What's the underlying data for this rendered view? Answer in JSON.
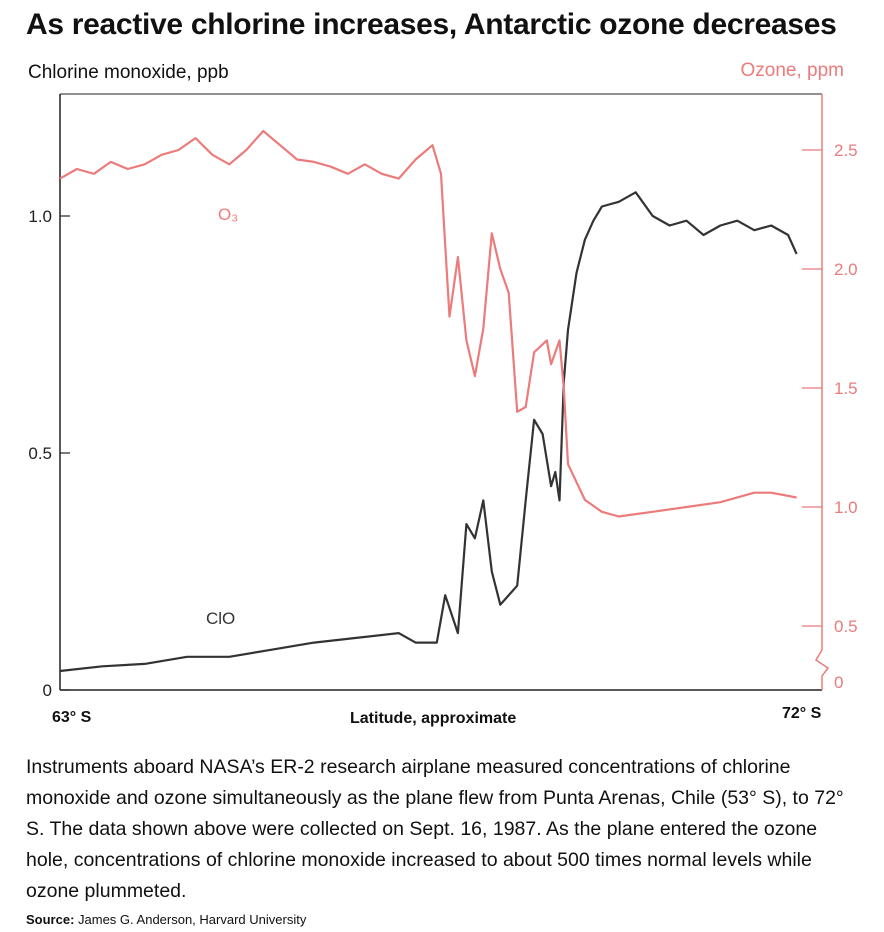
{
  "title": "As reactive chlorine increases, Antarctic ozone decreases",
  "chart_data": {
    "type": "line",
    "title": "As reactive chlorine increases, Antarctic ozone decreases",
    "xlabel": "Latitude, approximate",
    "x_tick_labels": [
      "63° S",
      "72° S"
    ],
    "xlim": [
      63,
      72
    ],
    "y_left": {
      "label": "Chlorine monoxide, ppb",
      "lim": [
        0,
        1.2
      ],
      "ticks": [
        0,
        0.5,
        1.0
      ],
      "tick_labels": [
        "0",
        "0.5",
        "1.0"
      ]
    },
    "y_right": {
      "label": "Ozone, ppm",
      "lim": [
        0,
        2.7
      ],
      "ticks": [
        0,
        0.5,
        1.0,
        1.5,
        2.0,
        2.5
      ],
      "tick_labels": [
        "0",
        "0.5",
        "1.0",
        "1.5",
        "2.0",
        "2.5"
      ],
      "axis_break": true
    },
    "series": [
      {
        "name": "ClO",
        "axis": "left",
        "color": "#333333",
        "x": [
          63.0,
          63.5,
          64.0,
          64.5,
          65.0,
          65.5,
          66.0,
          66.5,
          67.0,
          67.2,
          67.45,
          67.55,
          67.7,
          67.8,
          67.9,
          68.0,
          68.1,
          68.2,
          68.4,
          68.5,
          68.6,
          68.7,
          68.8,
          68.85,
          68.9,
          68.95,
          69.0,
          69.1,
          69.2,
          69.3,
          69.4,
          69.6,
          69.8,
          70.0,
          70.2,
          70.4,
          70.6,
          70.8,
          71.0,
          71.2,
          71.4,
          71.6,
          71.7
        ],
        "values": [
          0.04,
          0.05,
          0.055,
          0.07,
          0.07,
          0.085,
          0.1,
          0.11,
          0.12,
          0.1,
          0.1,
          0.2,
          0.12,
          0.35,
          0.32,
          0.4,
          0.25,
          0.18,
          0.22,
          0.4,
          0.57,
          0.54,
          0.43,
          0.46,
          0.4,
          0.65,
          0.76,
          0.88,
          0.95,
          0.99,
          1.02,
          1.03,
          1.05,
          1.0,
          0.98,
          0.99,
          0.96,
          0.98,
          0.99,
          0.97,
          0.98,
          0.96,
          0.92
        ]
      },
      {
        "name": "O₃",
        "axis": "right",
        "color": "#ec7b7b",
        "x": [
          63.0,
          63.2,
          63.4,
          63.6,
          63.8,
          64.0,
          64.2,
          64.4,
          64.6,
          64.8,
          65.0,
          65.2,
          65.4,
          65.6,
          65.8,
          66.0,
          66.2,
          66.4,
          66.6,
          66.8,
          67.0,
          67.2,
          67.4,
          67.5,
          67.55,
          67.6,
          67.7,
          67.8,
          67.9,
          68.0,
          68.1,
          68.2,
          68.3,
          68.4,
          68.5,
          68.6,
          68.75,
          68.8,
          68.9,
          68.95,
          69.0,
          69.2,
          69.4,
          69.6,
          69.8,
          70.0,
          70.4,
          70.8,
          71.2,
          71.4,
          71.7
        ],
        "values": [
          2.38,
          2.42,
          2.4,
          2.45,
          2.42,
          2.44,
          2.48,
          2.5,
          2.55,
          2.48,
          2.44,
          2.5,
          2.58,
          2.52,
          2.46,
          2.45,
          2.43,
          2.4,
          2.44,
          2.4,
          2.38,
          2.46,
          2.52,
          2.4,
          2.1,
          1.8,
          2.05,
          1.7,
          1.55,
          1.75,
          2.15,
          2.0,
          1.9,
          1.4,
          1.42,
          1.65,
          1.7,
          1.6,
          1.7,
          1.5,
          1.18,
          1.03,
          0.98,
          0.96,
          0.97,
          0.98,
          1.0,
          1.02,
          1.06,
          1.06,
          1.04
        ]
      }
    ],
    "annotations": [
      "O₃",
      "ClO"
    ],
    "legend": "none",
    "grid": false
  },
  "caption": "Instruments aboard NASA’s ER-2 research airplane measured concentrations of chlorine monoxide and ozone simultaneously as the plane flew from Punta Arenas, Chile (53° S), to 72° S. The data shown above were collected on Sept. 16, 1987. As the plane entered the ozone hole, concentrations of chlorine monoxide increased to about 500 times normal levels while ozone plummeted.",
  "source_label": "Source:",
  "source_text": " James G. Anderson, Harvard University"
}
